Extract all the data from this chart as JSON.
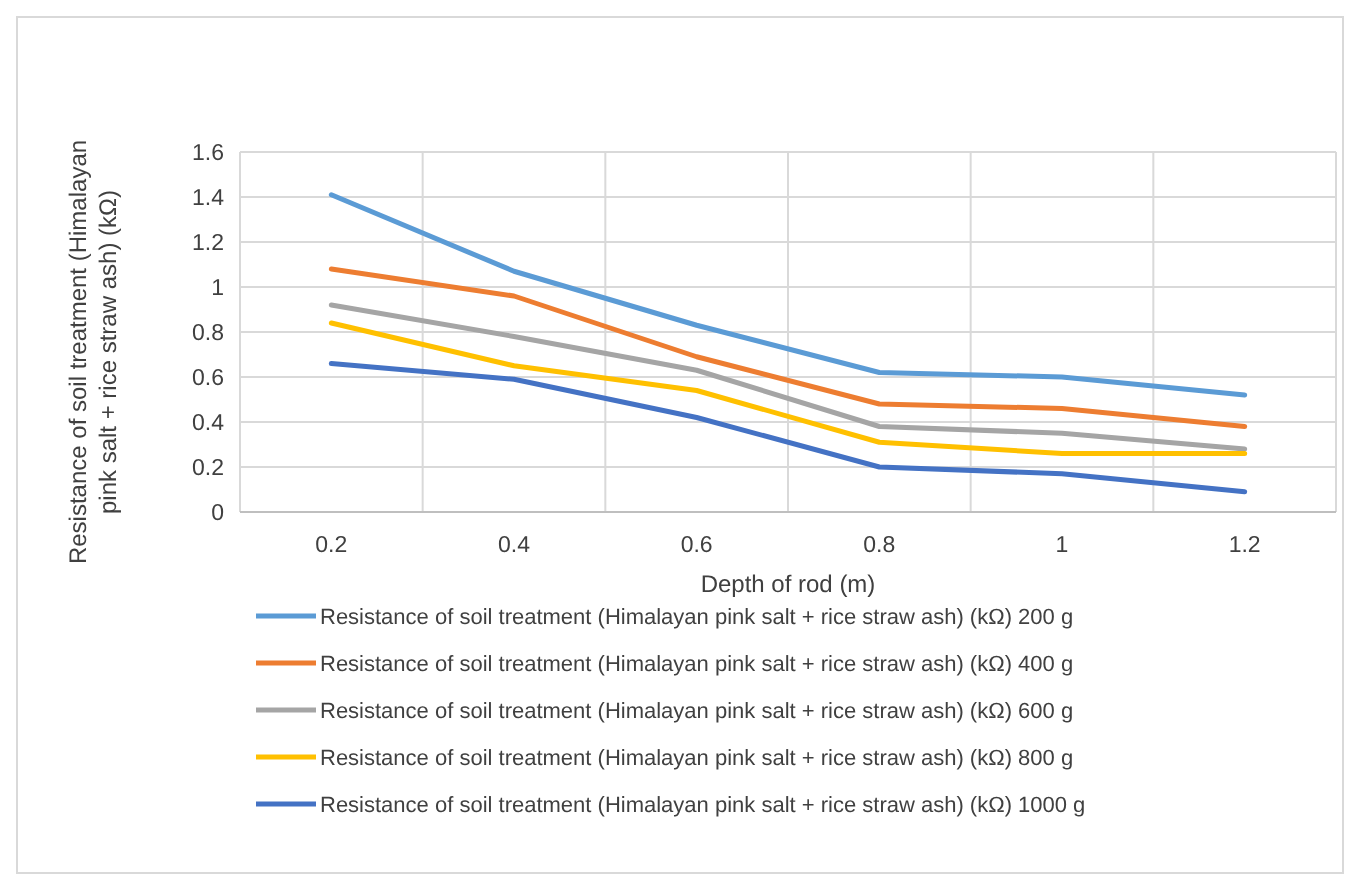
{
  "chart_data": {
    "type": "line",
    "xlabel": "Depth of rod (m)",
    "ylabel": "Resistance of soil treatment (Himalayan pink salt + rice straw ash) (kΩ)",
    "categories": [
      "0.2",
      "0.4",
      "0.6",
      "0.8",
      "1",
      "1.2"
    ],
    "series": [
      {
        "name": "Resistance of soil treatment (Himalayan pink salt + rice straw ash) (kΩ) 200 g",
        "color": "#5b9bd5",
        "values": [
          1.41,
          1.07,
          0.83,
          0.62,
          0.6,
          0.52
        ]
      },
      {
        "name": "Resistance of soil treatment (Himalayan pink salt + rice straw ash) (kΩ) 400 g",
        "color": "#ed7d31",
        "values": [
          1.08,
          0.96,
          0.69,
          0.48,
          0.46,
          0.38
        ]
      },
      {
        "name": "Resistance of soil treatment (Himalayan pink salt + rice straw ash) (kΩ) 600 g",
        "color": "#a5a5a5",
        "values": [
          0.92,
          0.78,
          0.63,
          0.38,
          0.35,
          0.28
        ]
      },
      {
        "name": "Resistance of soil treatment (Himalayan pink salt + rice straw ash) (kΩ) 800 g",
        "color": "#ffc000",
        "values": [
          0.84,
          0.65,
          0.54,
          0.31,
          0.26,
          0.26
        ]
      },
      {
        "name": "Resistance of soil treatment (Himalayan pink salt + rice straw ash) (kΩ) 1000 g",
        "color": "#4472c4",
        "values": [
          0.66,
          0.59,
          0.42,
          0.2,
          0.17,
          0.09
        ]
      }
    ],
    "ylim": [
      0,
      1.6
    ],
    "yticks": [
      0,
      0.2,
      0.4,
      0.6,
      0.8,
      1,
      1.2,
      1.4,
      1.6
    ],
    "grid": true,
    "legend": "bottom",
    "marker": "none",
    "line_style": "solid"
  }
}
